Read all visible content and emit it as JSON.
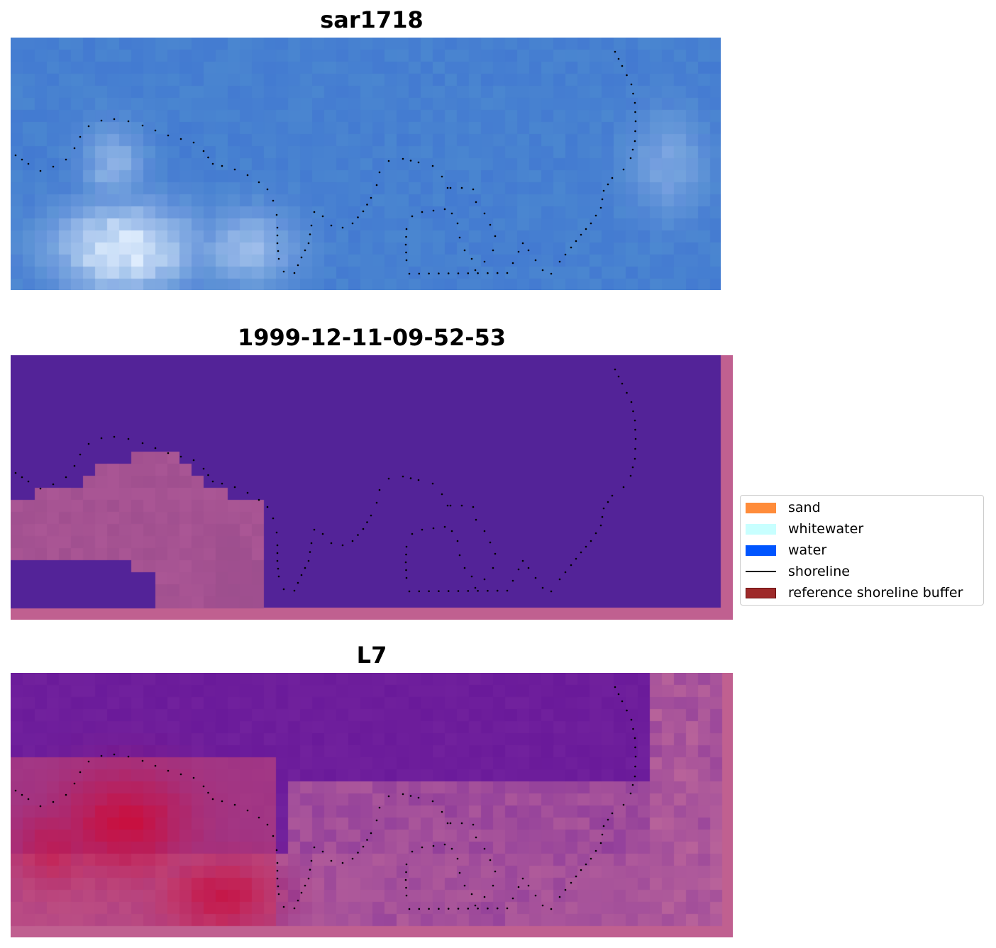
{
  "panels": [
    {
      "title": "sar1718",
      "kind": "sar"
    },
    {
      "title": "1999-12-11-09-52-53",
      "kind": "classification"
    },
    {
      "title": "L7",
      "kind": "index"
    }
  ],
  "legend": {
    "items": [
      {
        "label": "sand",
        "color": "#ff8c3a",
        "type": "patch"
      },
      {
        "label": "whitewater",
        "color": "#c8ffff",
        "type": "patch"
      },
      {
        "label": "water",
        "color": "#0055ff",
        "type": "patch"
      },
      {
        "label": "shoreline",
        "color": "#000000",
        "type": "line"
      },
      {
        "label": "reference shoreline buffer",
        "color": "#9e2a2a",
        "type": "patch"
      }
    ]
  },
  "colors": {
    "sar_water": "#4a86d0",
    "sar_bright": "#e6f2ff",
    "class_water": "#532398",
    "class_land": "#a04f8f",
    "buffer_pink": "#c06090",
    "l7_purple": "#6a1a9a",
    "l7_red": "#c81040",
    "l7_pink": "#c06a9a"
  }
}
